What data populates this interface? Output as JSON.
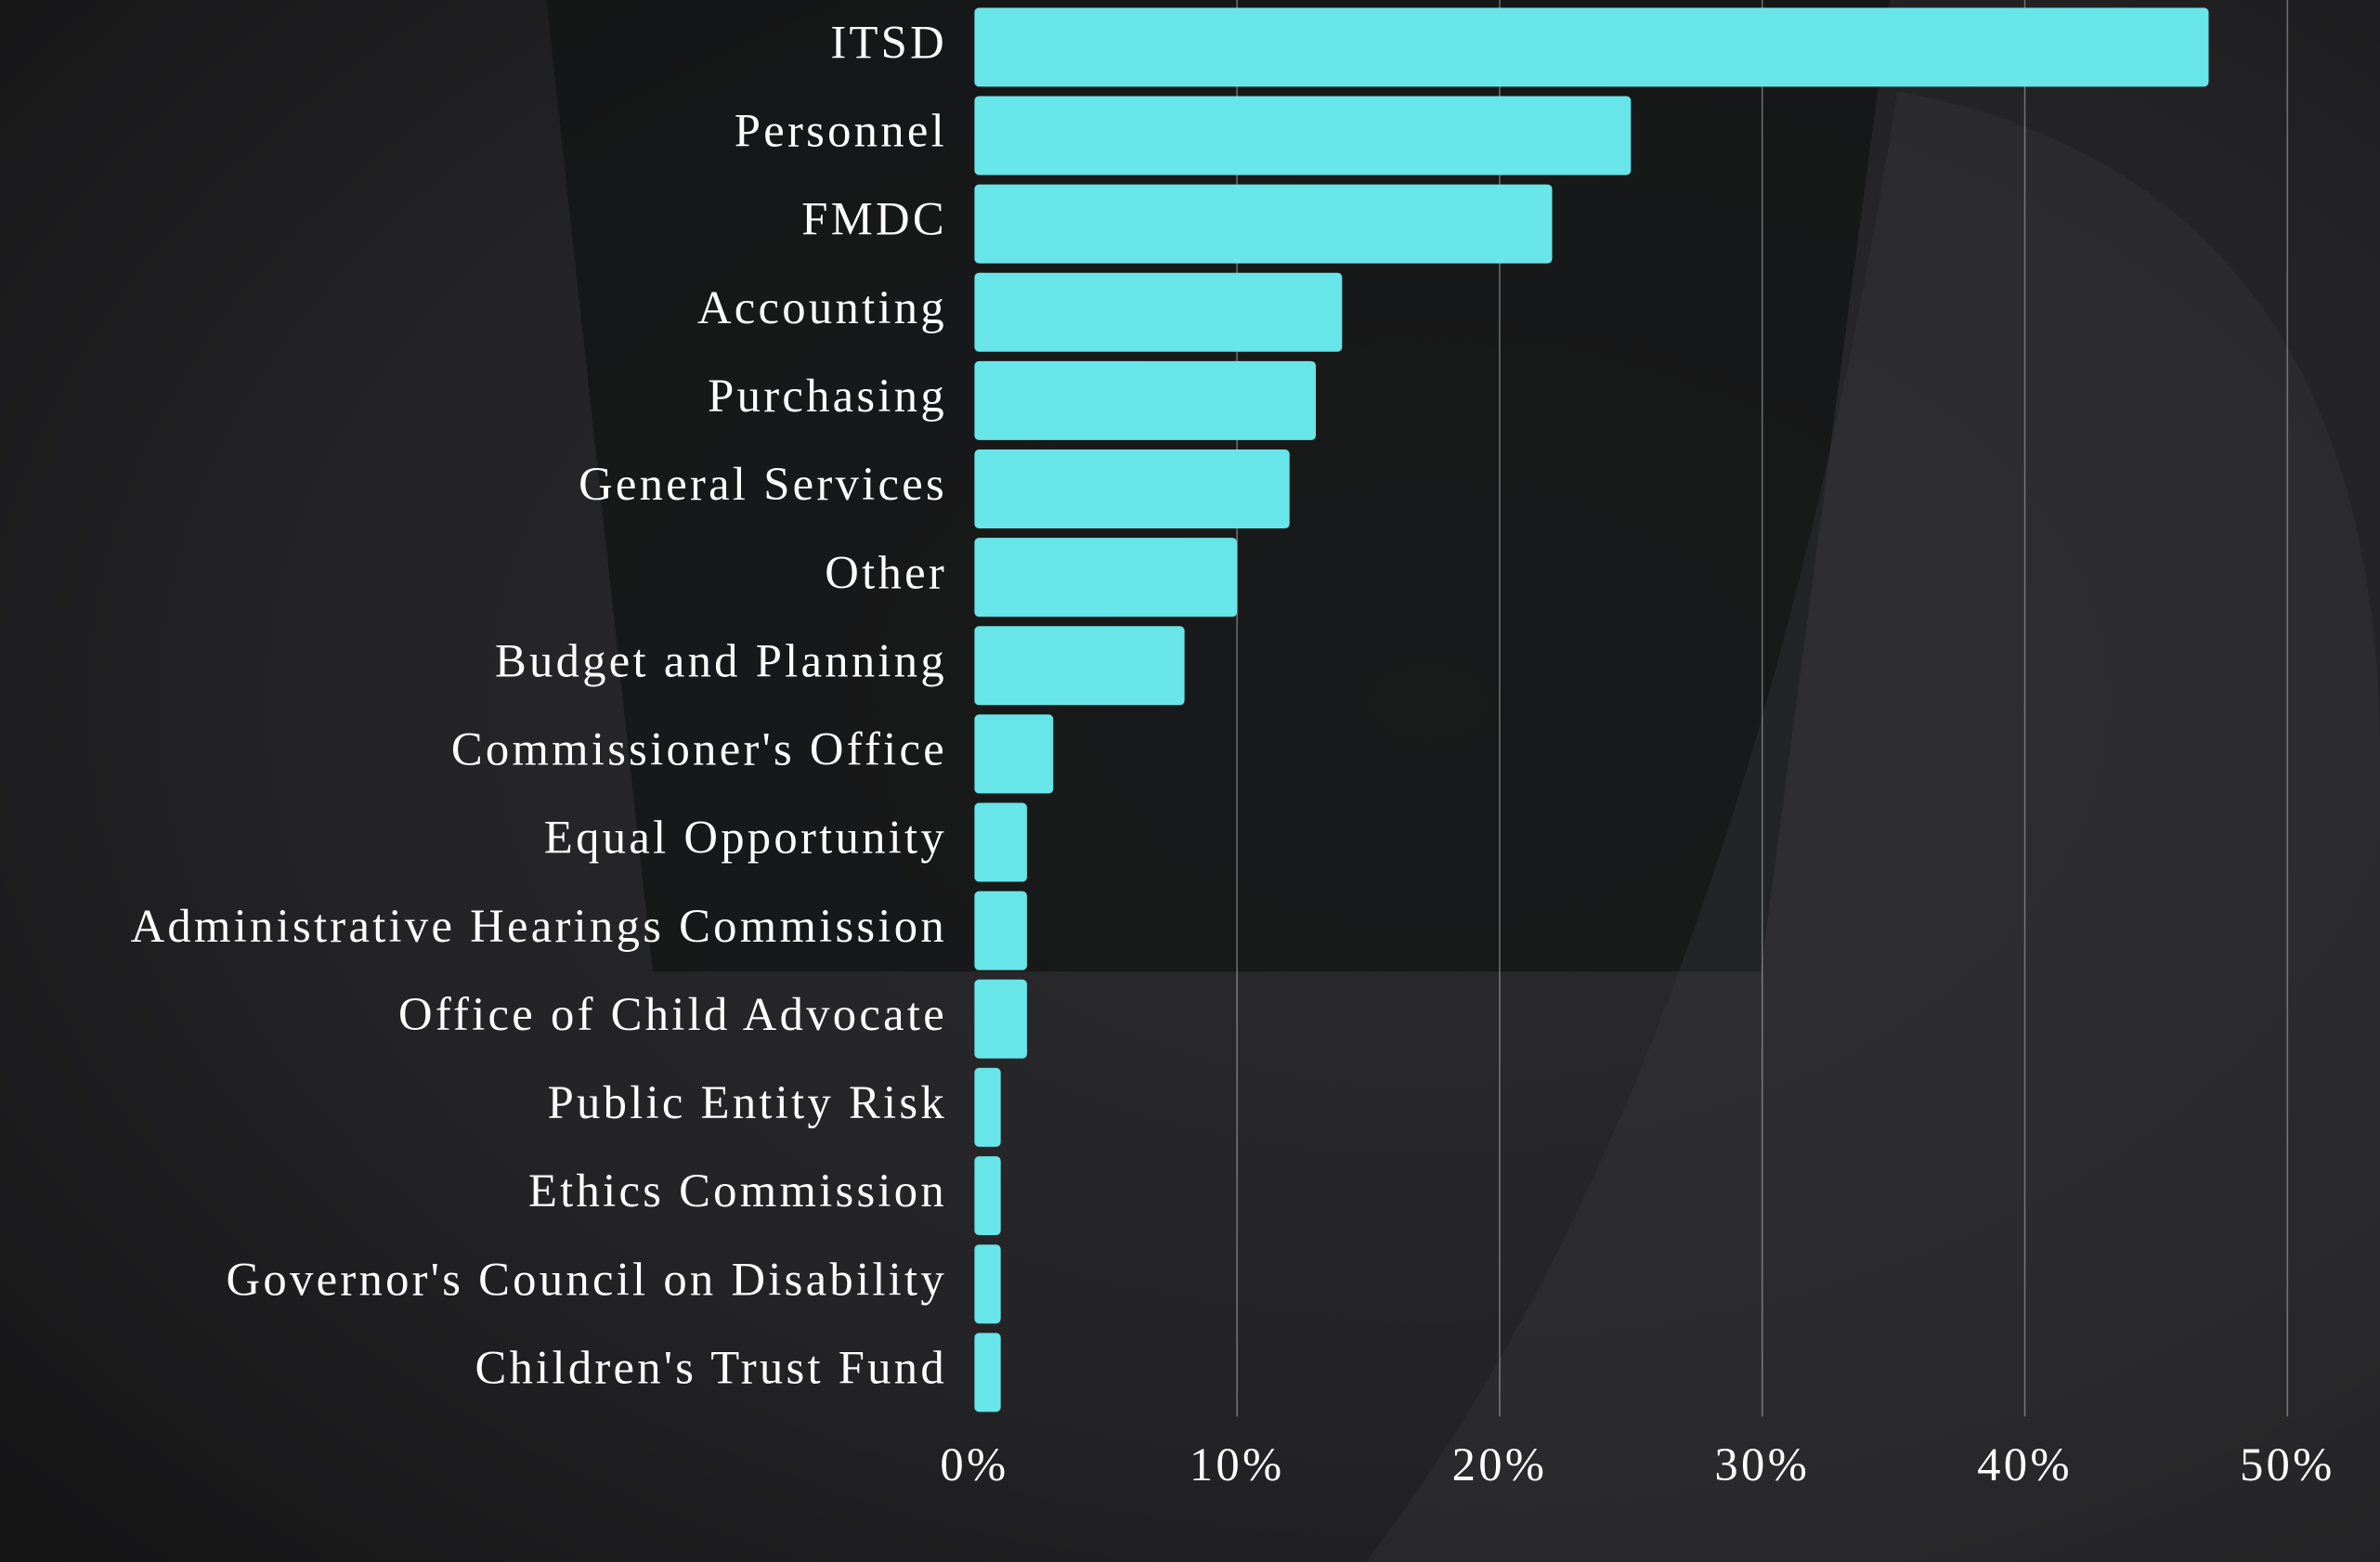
{
  "chart_data": {
    "type": "bar",
    "orientation": "horizontal",
    "categories": [
      "ITSD",
      "Personnel",
      "FMDC",
      "Accounting",
      "Purchasing",
      "General Services",
      "Other",
      "Budget and Planning",
      "Commissioner's Office",
      "Equal Opportunity",
      "Administrative Hearings Commission",
      "Office of Child Advocate",
      "Public Entity Risk",
      "Ethics Commission",
      "Governor's Council on Disability",
      "Children's Trust Fund"
    ],
    "values": [
      47,
      25,
      22,
      14,
      13,
      12,
      10,
      8,
      3,
      2,
      2,
      2,
      1,
      1,
      1,
      1
    ],
    "color": "#68e5e8",
    "xlim": [
      0,
      50
    ],
    "xticks": [
      {
        "value": 0,
        "label": "0%"
      },
      {
        "value": 10,
        "label": "10%"
      },
      {
        "value": 20,
        "label": "20%"
      },
      {
        "value": 30,
        "label": "30%"
      },
      {
        "value": 40,
        "label": "40%"
      },
      {
        "value": 50,
        "label": "50%"
      }
    ],
    "grid": true
  }
}
